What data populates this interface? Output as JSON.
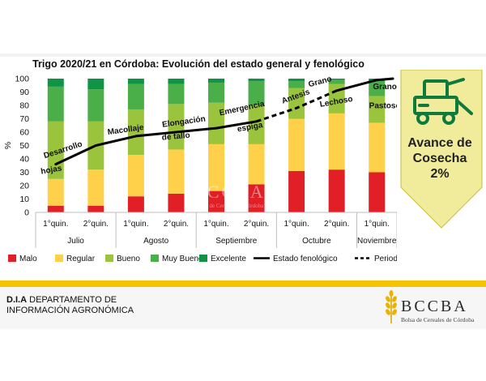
{
  "title": "Trigo 2020/21 en Córdoba: Evolución del estado general y fenológico",
  "chart_data": {
    "type": "bar",
    "stacked": true,
    "ylabel": "%",
    "ylim": [
      0,
      100
    ],
    "yticks": [
      0,
      10,
      20,
      30,
      40,
      50,
      60,
      70,
      80,
      90,
      100
    ],
    "categories": [
      "1°quin.",
      "2°quin.",
      "1°quin.",
      "2°quin.",
      "1°quin.",
      "2°quin.",
      "1°quin.",
      "2°quin.",
      "1°quin."
    ],
    "months": [
      {
        "label": "Julio",
        "span": 2
      },
      {
        "label": "Agosto",
        "span": 2
      },
      {
        "label": "Septiembre",
        "span": 2
      },
      {
        "label": "Octubre",
        "span": 2
      },
      {
        "label": "Noviembre",
        "span": 1
      }
    ],
    "series": [
      {
        "name": "Malo",
        "color": "#e01f26",
        "values": [
          5,
          5,
          12,
          14,
          16,
          21,
          31,
          32,
          30
        ]
      },
      {
        "name": "Regular",
        "color": "#ffd04a",
        "values": [
          20,
          27,
          31,
          33,
          35,
          30,
          39,
          42,
          37
        ]
      },
      {
        "name": "Bueno",
        "color": "#9ac43c",
        "values": [
          43,
          36,
          34,
          34,
          31,
          29,
          23,
          22,
          20
        ]
      },
      {
        "name": "Muy Bueno",
        "color": "#4aae49",
        "values": [
          26,
          24,
          19,
          15,
          15,
          18,
          5,
          3,
          11
        ]
      },
      {
        "name": "Excelente",
        "color": "#0e9444",
        "values": [
          6,
          8,
          4,
          4,
          3,
          2,
          2,
          1,
          2
        ]
      }
    ],
    "phenology_series": [
      {
        "name": "Estado fenológico",
        "style": "solid",
        "x": [
          0,
          1,
          2,
          3,
          4,
          5
        ],
        "y": [
          36,
          50,
          57,
          60,
          63,
          68
        ]
      },
      {
        "name": "Periodo crítico",
        "style": "dashed",
        "x": [
          5,
          6,
          7
        ],
        "y": [
          68,
          78,
          91
        ]
      },
      {
        "name": "",
        "style": "solid",
        "x": [
          7,
          8,
          8.4
        ],
        "y": [
          91,
          99,
          100
        ]
      }
    ],
    "stage_labels": [
      {
        "text": "Desarrollo",
        "x": 0.2,
        "y": 45,
        "rotate": -18
      },
      {
        "text": "hojas",
        "x": -0.1,
        "y": 30,
        "rotate": -10
      },
      {
        "text": "Macollaje",
        "x": 1.75,
        "y": 60,
        "rotate": -8
      },
      {
        "text": "Elongación",
        "x": 3.2,
        "y": 66,
        "rotate": -8
      },
      {
        "text": "de tallo",
        "x": 3.0,
        "y": 55,
        "rotate": -5
      },
      {
        "text": "Emergencia",
        "x": 4.65,
        "y": 76,
        "rotate": -12
      },
      {
        "text": "espiga",
        "x": 4.85,
        "y": 62,
        "rotate": -10
      },
      {
        "text": "Antesis",
        "x": 6.0,
        "y": 85,
        "rotate": -20
      },
      {
        "text": "Grano",
        "x": 6.6,
        "y": 96,
        "rotate": -15
      },
      {
        "text": "Lechoso",
        "x": 7.0,
        "y": 81,
        "rotate": -10
      },
      {
        "text": "Grano",
        "x": 8.2,
        "y": 92,
        "rotate": 0
      },
      {
        "text": "Pastoso",
        "x": 8.2,
        "y": 78,
        "rotate": 0
      }
    ],
    "legend": [
      {
        "name": "Malo",
        "kind": "box",
        "color": "#e01f26"
      },
      {
        "name": "Regular",
        "kind": "box",
        "color": "#ffd04a"
      },
      {
        "name": "Bueno",
        "kind": "box",
        "color": "#9ac43c"
      },
      {
        "name": "Muy Bueno",
        "kind": "box",
        "color": "#4aae49"
      },
      {
        "name": "Excelente",
        "kind": "box",
        "color": "#0e9444"
      },
      {
        "name": "Estado fenológico",
        "kind": "solid",
        "color": "#000000"
      },
      {
        "name": "Periodo crítico",
        "kind": "dashed",
        "color": "#000000"
      }
    ],
    "legend_position": "bottom",
    "grid": false
  },
  "side_panel": {
    "line1": "Avance de",
    "line2": "Cosecha",
    "value": "2%",
    "icon": "combine-harvester-icon",
    "colors": {
      "fill": "#f1eb9c",
      "border": "#c8be3a",
      "icon": "#0e7a3c"
    }
  },
  "watermark": {
    "name": "BCCBA",
    "sub": "Bolsa de Cereales de Córdoba"
  },
  "footer": {
    "dept_bold": "D.I.A",
    "dept_line1": " DEPARTAMENTO DE",
    "dept_line2": "INFORMACIÓN AGRONÓMICA",
    "logo_name": "BCCBA",
    "logo_sub": "Bolsa de Cereales de Córdoba",
    "logo_icon": "wheat-icon",
    "bar_color": "#f5c400"
  }
}
